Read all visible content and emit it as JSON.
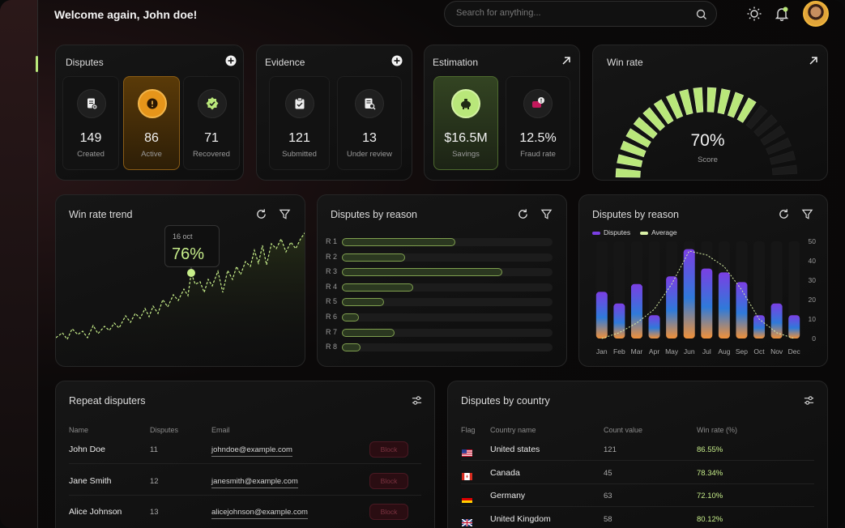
{
  "header": {
    "welcome": "Welcome again, John doe!",
    "search_placeholder": "Search for anything..."
  },
  "disputes_card": {
    "title": "Disputes",
    "items": [
      {
        "value": "149",
        "label": "Created",
        "icon": "document-add-icon"
      },
      {
        "value": "86",
        "label": "Active",
        "icon": "alert-icon"
      },
      {
        "value": "71",
        "label": "Recovered",
        "icon": "verified-badge-icon"
      }
    ]
  },
  "evidence_card": {
    "title": "Evidence",
    "items": [
      {
        "value": "121",
        "label": "Submitted",
        "icon": "clipboard-check-icon"
      },
      {
        "value": "13",
        "label": "Under review",
        "icon": "document-search-icon"
      }
    ]
  },
  "estimation_card": {
    "title": "Estimation",
    "items": [
      {
        "value": "$16.5M",
        "label": "Savings",
        "icon": "piggy-bank-icon"
      },
      {
        "value": "12.5%",
        "label": "Fraud rate",
        "icon": "fraud-icon"
      }
    ]
  },
  "win_rate_card": {
    "title": "Win rate",
    "value": "70%",
    "label": "Score",
    "fraction": 0.7
  },
  "win_rate_trend": {
    "title": "Win rate trend",
    "tooltip_date": "16 oct",
    "tooltip_value": "76%"
  },
  "disputes_by_reason_1": {
    "title": "Disputes by reason",
    "rows": [
      {
        "label": "R 1",
        "value": 0.54
      },
      {
        "label": "R 2",
        "value": 0.3
      },
      {
        "label": "R 3",
        "value": 0.76
      },
      {
        "label": "R 4",
        "value": 0.34
      },
      {
        "label": "R 5",
        "value": 0.2
      },
      {
        "label": "R 6",
        "value": 0.08
      },
      {
        "label": "R 7",
        "value": 0.25
      },
      {
        "label": "R 8",
        "value": 0.09
      }
    ]
  },
  "disputes_by_reason_2": {
    "title": "Disputes by reason",
    "legend": [
      "Disputes",
      "Average"
    ]
  },
  "chart_data": {
    "type": "bar",
    "categories": [
      "Jan",
      "Feb",
      "Mar",
      "Apr",
      "May",
      "Jun",
      "Jul",
      "Aug",
      "Sep",
      "Oct",
      "Nov",
      "Dec"
    ],
    "series": [
      {
        "name": "Disputes",
        "values": [
          24,
          18,
          28,
          12,
          32,
          46,
          36,
          34,
          29,
          12,
          18,
          12
        ]
      },
      {
        "name": "Average",
        "values": [
          0,
          3,
          8,
          15,
          28,
          45,
          43,
          37,
          25,
          10,
          3,
          0
        ]
      }
    ],
    "ylim": [
      0,
      50
    ],
    "yticks": [
      "50",
      "40",
      "30",
      "20",
      "10",
      "0"
    ],
    "colors": {
      "bar_top": "#7b3fe4",
      "bar_mid": "#2f7ad9",
      "bar_bottom": "#f0913a",
      "line": "#d9f0a6"
    }
  },
  "repeat_disputers": {
    "title": "Repeat disputers",
    "columns": [
      "Name",
      "Disputes",
      "Email"
    ],
    "block_label": "Block",
    "rows": [
      {
        "name": "John Doe",
        "disputes": "11",
        "email": "johndoe@example.com"
      },
      {
        "name": "Jane Smith",
        "disputes": "12",
        "email": "janesmith@example.com"
      },
      {
        "name": "Alice Johnson",
        "disputes": "13",
        "email": "alicejohnson@example.com"
      }
    ]
  },
  "disputes_by_country": {
    "title": "Disputes by country",
    "columns": [
      "Flag",
      "Country name",
      "Count value",
      "Win rate (%)"
    ],
    "rows": [
      {
        "flag": "us-flag-icon",
        "country": "United states",
        "count": "121",
        "rate": "86.55%"
      },
      {
        "flag": "ca-flag-icon",
        "country": "Canada",
        "count": "45",
        "rate": "78.34%"
      },
      {
        "flag": "de-flag-icon",
        "country": "Germany",
        "count": "63",
        "rate": "72.10%"
      },
      {
        "flag": "uk-flag-icon",
        "country": "United Kingdom",
        "count": "58",
        "rate": "80.12%"
      }
    ]
  }
}
